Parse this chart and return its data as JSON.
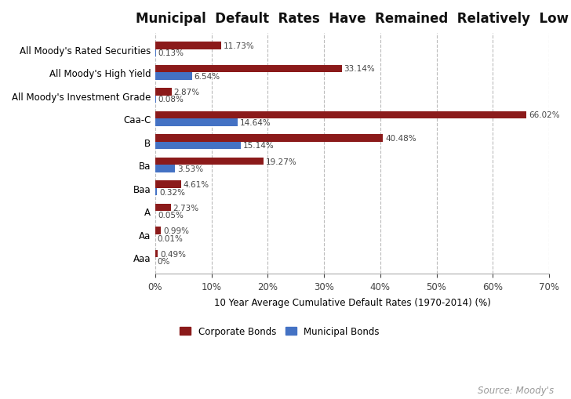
{
  "title": "Municipal  Default  Rates  Have  Remained  Relatively  Low",
  "categories": [
    "All Moody's Rated Securities",
    "All Moody's High Yield",
    "All Moody's Investment Grade",
    "Caa-C",
    "B",
    "Ba",
    "Baa",
    "A",
    "Aa",
    "Aaa"
  ],
  "corporate": [
    11.73,
    33.14,
    2.87,
    66.02,
    40.48,
    19.27,
    4.61,
    2.73,
    0.99,
    0.49
  ],
  "municipal": [
    0.13,
    6.54,
    0.08,
    14.64,
    15.14,
    3.53,
    0.32,
    0.05,
    0.01,
    0.0
  ],
  "corporate_color": "#8B1A1A",
  "municipal_color": "#4472C4",
  "xlabel": "10 Year Average Cumulative Default Rates (1970-2014) (%)",
  "xlim": [
    0,
    70
  ],
  "xticks": [
    0,
    10,
    20,
    30,
    40,
    50,
    60,
    70
  ],
  "xtick_labels": [
    "0%",
    "10%",
    "20%",
    "30%",
    "40%",
    "50%",
    "60%",
    "70%"
  ],
  "background_color": "#FFFFFF",
  "grid_color": "#BBBBBB",
  "legend_corporate": "Corporate Bonds",
  "legend_municipal": "Municipal Bonds",
  "source_text": "Source: Moody's",
  "bar_height": 0.32,
  "title_fontsize": 12,
  "label_fontsize": 8.5,
  "tick_fontsize": 8.5,
  "value_fontsize": 7.5,
  "ytick_fontsize": 8.5
}
